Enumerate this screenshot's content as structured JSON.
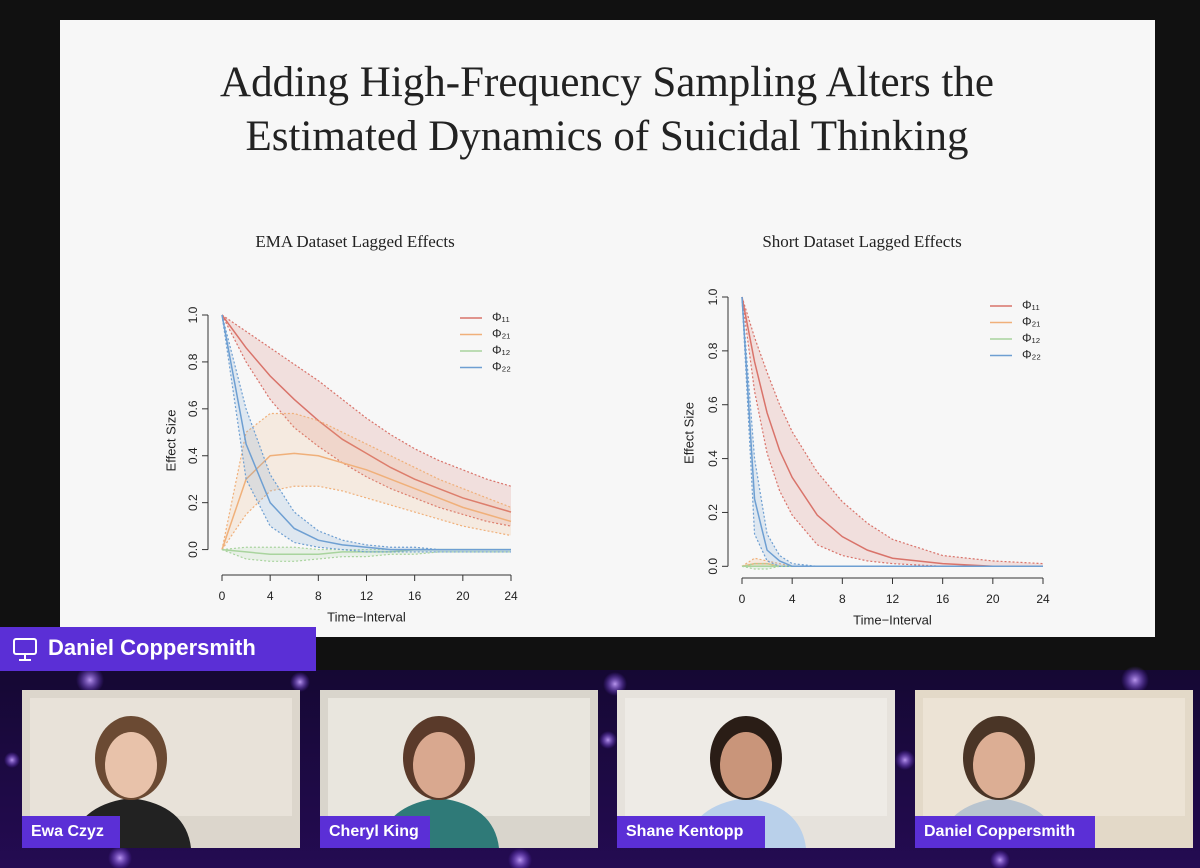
{
  "slide": {
    "title_lines": [
      "Adding High-Frequency Sampling Alters the",
      "Estimated Dynamics of Suicidal Thinking"
    ]
  },
  "presenter": "Daniel Coppersmith",
  "participants": [
    "Ewa Czyz",
    "Cheryl King",
    "Shane Kentopp",
    "Daniel Coppersmith"
  ],
  "chart_data": [
    {
      "type": "line",
      "title": "EMA Dataset Lagged Effects",
      "x_label": "Time−Interval",
      "y_label": "Effect Size",
      "x": [
        0,
        2,
        4,
        6,
        8,
        10,
        12,
        14,
        16,
        18,
        20,
        22,
        24
      ],
      "xlim": [
        0,
        24
      ],
      "xticks": [
        0,
        4,
        8,
        12,
        16,
        20,
        24
      ],
      "ylim": [
        -0.07,
        1
      ],
      "yticks": [
        {
          "value": 0,
          "label": "0.0"
        },
        0.2,
        0.4,
        0.6,
        0.8,
        {
          "value": 1,
          "label": "1.0"
        }
      ],
      "series": [
        {
          "name": "Φ₁₁",
          "color": "#d9736a",
          "values": [
            1,
            0.86,
            0.74,
            0.64,
            0.55,
            0.47,
            0.41,
            0.35,
            0.3,
            0.26,
            0.22,
            0.19,
            0.16
          ],
          "lower": [
            1,
            0.8,
            0.64,
            0.52,
            0.44,
            0.37,
            0.31,
            0.26,
            0.22,
            0.18,
            0.15,
            0.12,
            0.1
          ],
          "upper": [
            1,
            0.93,
            0.86,
            0.79,
            0.72,
            0.64,
            0.56,
            0.49,
            0.43,
            0.38,
            0.34,
            0.3,
            0.27
          ]
        },
        {
          "name": "Φ₂₁",
          "color": "#f0b07a",
          "values": [
            0,
            0.3,
            0.4,
            0.41,
            0.4,
            0.37,
            0.34,
            0.3,
            0.26,
            0.22,
            0.18,
            0.15,
            0.12
          ],
          "lower": [
            0,
            0.15,
            0.25,
            0.27,
            0.27,
            0.25,
            0.22,
            0.19,
            0.16,
            0.13,
            0.1,
            0.08,
            0.06
          ],
          "upper": [
            0,
            0.5,
            0.58,
            0.58,
            0.55,
            0.5,
            0.45,
            0.4,
            0.35,
            0.3,
            0.26,
            0.22,
            0.18
          ]
        },
        {
          "name": "Φ₁₂",
          "color": "#a9d49e",
          "values": [
            0,
            -0.01,
            -0.02,
            -0.02,
            -0.02,
            -0.01,
            -0.01,
            -0.01,
            0,
            0,
            0,
            0,
            0
          ],
          "lower": [
            0,
            -0.04,
            -0.05,
            -0.05,
            -0.04,
            -0.03,
            -0.03,
            -0.02,
            -0.02,
            -0.01,
            -0.01,
            -0.01,
            -0.01
          ],
          "upper": [
            0,
            0.01,
            0.01,
            0.01,
            0,
            0,
            0,
            0,
            0,
            0,
            0,
            0,
            0
          ]
        },
        {
          "name": "Φ₂₂",
          "color": "#6e9fd2",
          "values": [
            1,
            0.45,
            0.2,
            0.09,
            0.04,
            0.02,
            0.01,
            0,
            0,
            0,
            0,
            0,
            0
          ],
          "lower": [
            1,
            0.3,
            0.1,
            0.03,
            0.01,
            0,
            -0.01,
            -0.01,
            -0.01,
            -0.01,
            -0.01,
            -0.01,
            -0.01
          ],
          "upper": [
            1,
            0.6,
            0.32,
            0.16,
            0.08,
            0.04,
            0.02,
            0.01,
            0.01,
            0,
            0,
            0,
            0
          ]
        }
      ]
    },
    {
      "type": "line",
      "title": "Short Dataset Lagged Effects",
      "x_label": "Time−Interval",
      "y_label": "Effect Size",
      "x": [
        0,
        1,
        2,
        3,
        4,
        6,
        8,
        10,
        12,
        16,
        20,
        24
      ],
      "xlim": [
        0,
        24
      ],
      "xticks": [
        0,
        4,
        8,
        12,
        16,
        20,
        24
      ],
      "ylim": [
        -0.01,
        1
      ],
      "yticks": [
        {
          "value": 0,
          "label": "0.0"
        },
        0.2,
        0.4,
        0.6,
        0.8,
        {
          "value": 1,
          "label": "1.0"
        }
      ],
      "series": [
        {
          "name": "Φ₁₁",
          "color": "#d9736a",
          "values": [
            1,
            0.76,
            0.57,
            0.43,
            0.33,
            0.19,
            0.11,
            0.06,
            0.03,
            0.01,
            0,
            0
          ],
          "lower": [
            1,
            0.65,
            0.42,
            0.28,
            0.19,
            0.08,
            0.04,
            0.02,
            0.01,
            0,
            0,
            0
          ],
          "upper": [
            1,
            0.85,
            0.72,
            0.6,
            0.5,
            0.35,
            0.24,
            0.16,
            0.1,
            0.04,
            0.02,
            0.01
          ]
        },
        {
          "name": "Φ₂₁",
          "color": "#f0b07a",
          "values": [
            0,
            0.01,
            0.01,
            0,
            0,
            0,
            0,
            0,
            0,
            0,
            0,
            0
          ],
          "lower": [
            0,
            0,
            0,
            0,
            0,
            0,
            0,
            0,
            0,
            0,
            0,
            0
          ],
          "upper": [
            0,
            0.03,
            0.02,
            0.01,
            0,
            0,
            0,
            0,
            0,
            0,
            0,
            0
          ]
        },
        {
          "name": "Φ₁₂",
          "color": "#a9d49e",
          "values": [
            0,
            0,
            0,
            0,
            0,
            0,
            0,
            0,
            0,
            0,
            0,
            0
          ],
          "lower": [
            0,
            -0.01,
            -0.01,
            0,
            0,
            0,
            0,
            0,
            0,
            0,
            0,
            0
          ],
          "upper": [
            0,
            0.01,
            0.01,
            0,
            0,
            0,
            0,
            0,
            0,
            0,
            0,
            0
          ]
        },
        {
          "name": "Φ₂₂",
          "color": "#6e9fd2",
          "values": [
            1,
            0.25,
            0.06,
            0.02,
            0,
            0,
            0,
            0,
            0,
            0,
            0,
            0
          ],
          "lower": [
            1,
            0.12,
            0.02,
            0,
            0,
            0,
            0,
            0,
            0,
            0,
            0,
            0
          ],
          "upper": [
            1,
            0.4,
            0.12,
            0.04,
            0.01,
            0,
            0,
            0,
            0,
            0,
            0,
            0
          ]
        }
      ]
    }
  ]
}
